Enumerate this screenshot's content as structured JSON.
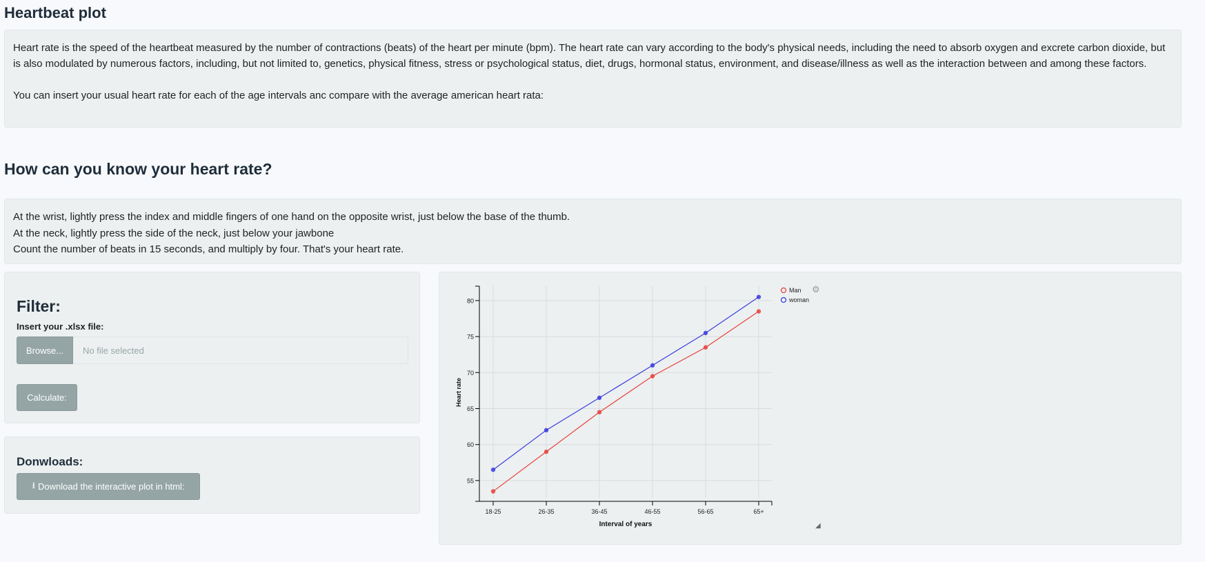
{
  "page": {
    "title": "Heartbeat plot"
  },
  "intro": {
    "paragraph1": "Heart rate is the speed of the heartbeat measured by the number of contractions (beats) of the heart per minute (bpm). The heart rate can vary according to the body's physical needs, including the need to absorb oxygen and excrete carbon dioxide, but is also modulated by numerous factors, including, but not limited to, genetics, physical fitness, stress or psychological status, diet, drugs, hormonal status, environment, and disease/illness as well as the interaction between and among these factors.",
    "paragraph2": "You can insert your usual heart rate for each of the age intervals anc compare with the average american heart rata:"
  },
  "howto": {
    "title": "How can you know your heart rate?",
    "line1": "At the wrist, lightly press the index and middle fingers of one hand on the opposite wrist, just below the base of the thumb.",
    "line2": "At the neck, lightly press the side of the neck, just below your jawbone",
    "line3": "Count the number of beats in 15 seconds, and multiply by four. That's your heart rate."
  },
  "filter": {
    "title": "Filter:",
    "file_label": "Insert your .xlsx file:",
    "browse_label": "Browse...",
    "file_placeholder": "No file selected",
    "calculate_label": "Calculate:"
  },
  "downloads": {
    "title": "Donwloads:",
    "download_label": "Download the interactive plot in html:",
    "download_icon": "download-icon"
  },
  "colors": {
    "man": "#e8413c",
    "woman": "#3b3bdc",
    "panel": "#ecf0f1",
    "button": "#95a5a6"
  },
  "chart_data": {
    "type": "line",
    "categories": [
      "18-25",
      "26-35",
      "36-45",
      "46-55",
      "56-65",
      "65+"
    ],
    "series": [
      {
        "name": "Man",
        "values": [
          53.5,
          59,
          64.5,
          69.5,
          73.5,
          78.5
        ]
      },
      {
        "name": "woman",
        "values": [
          56.5,
          62,
          66.5,
          71,
          75.5,
          80.5
        ]
      }
    ],
    "xlabel": "Interval of years",
    "ylabel": "Heart rate",
    "ylim": [
      52.5,
      82
    ],
    "yticks": [
      55,
      60,
      65,
      70,
      75,
      80
    ],
    "grid": true,
    "legend_position": "top-right"
  }
}
